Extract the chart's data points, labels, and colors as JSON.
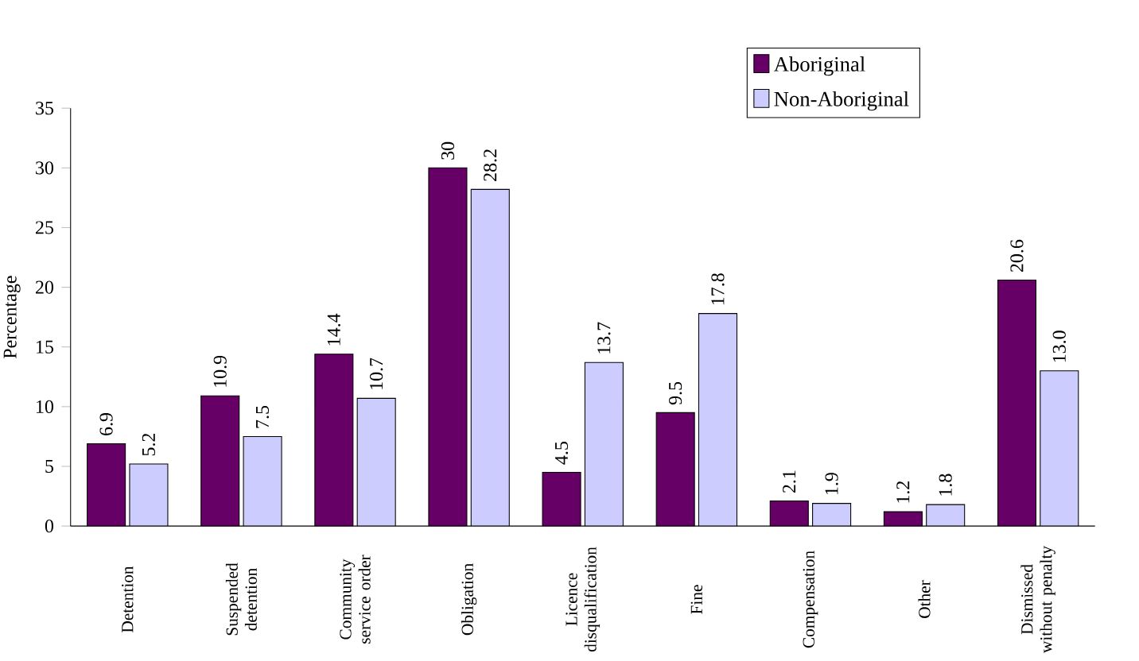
{
  "chart_data": {
    "type": "bar",
    "ylabel": "Percentage",
    "categories": [
      "Detention",
      "Suspended detention",
      "Community service order",
      "Obligation",
      "Licence disqualification",
      "Fine",
      "Compensation",
      "Other",
      "Dismissed without penalty"
    ],
    "series": [
      {
        "name": "Aboriginal",
        "color": "#660066",
        "values": [
          6.9,
          10.9,
          14.4,
          30,
          4.5,
          9.5,
          2.1,
          1.2,
          20.6
        ],
        "value_labels": [
          "6.9",
          "10.9",
          "14.4",
          "30",
          "4.5",
          "9.5",
          "2.1",
          "1.2",
          "20.6"
        ]
      },
      {
        "name": "Non-Aboriginal",
        "color": "#ccccff",
        "values": [
          5.2,
          7.5,
          10.7,
          28.2,
          13.7,
          17.8,
          1.9,
          1.8,
          13.0
        ],
        "value_labels": [
          "5.2",
          "7.5",
          "10.7",
          "28.2",
          "13.7",
          "17.8",
          "1.9",
          "1.8",
          "13.0"
        ]
      }
    ],
    "ylim": [
      0,
      35
    ],
    "yticks": [
      0,
      5,
      10,
      15,
      20,
      25,
      30,
      35
    ],
    "grid": false,
    "legend": "top right"
  }
}
